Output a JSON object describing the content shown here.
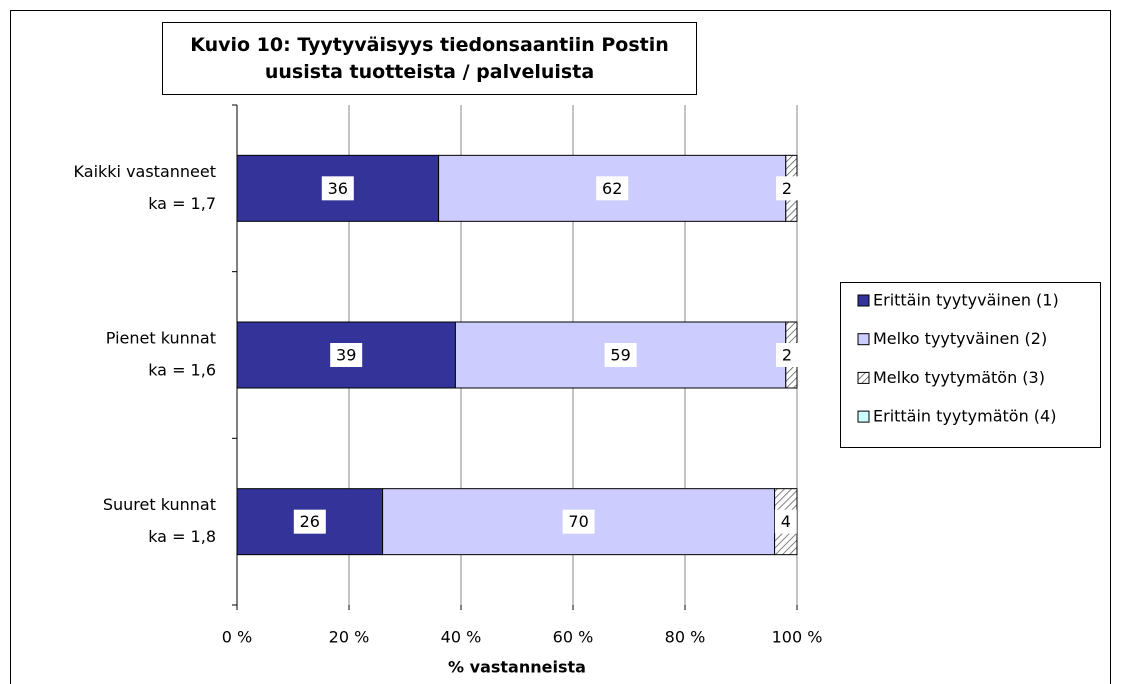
{
  "chart_data": {
    "type": "stacked-barh",
    "title": "Kuvio 10: Tyytyväisyys tiedonsaantiin Postin uusista tuotteista / palveluista",
    "xlabel": "% vastanneista",
    "categories": [
      [
        "Kaikki vastanneet",
        "ka = 1,7"
      ],
      [
        "Pienet kunnat",
        "ka = 1,6"
      ],
      [
        "Suuret kunnat",
        "ka = 1,8"
      ]
    ],
    "series": [
      {
        "name": "Erittäin tyytyväinen (1)",
        "color": "#333399",
        "values": [
          36,
          39,
          26
        ]
      },
      {
        "name": "Melko tyytyväinen (2)",
        "color": "#ccccff",
        "values": [
          62,
          59,
          70
        ]
      },
      {
        "name": "Melko tyytymätön (3)",
        "color": "#ffffff",
        "hatch": true,
        "values": [
          2,
          2,
          4
        ]
      },
      {
        "name": "Erittäin tyytymätön (4)",
        "color": "#ccffff",
        "values": [
          0,
          0,
          0
        ]
      }
    ],
    "xlim": [
      0,
      100
    ],
    "xticks": [
      {
        "value": 0,
        "label": "0 %"
      },
      {
        "value": 20,
        "label": "20 %"
      },
      {
        "value": 40,
        "label": "40 %"
      },
      {
        "value": 60,
        "label": "60 %"
      },
      {
        "value": 80,
        "label": "80 %"
      },
      {
        "value": 100,
        "label": "100 %"
      }
    ],
    "grid": true,
    "legend": "right"
  }
}
